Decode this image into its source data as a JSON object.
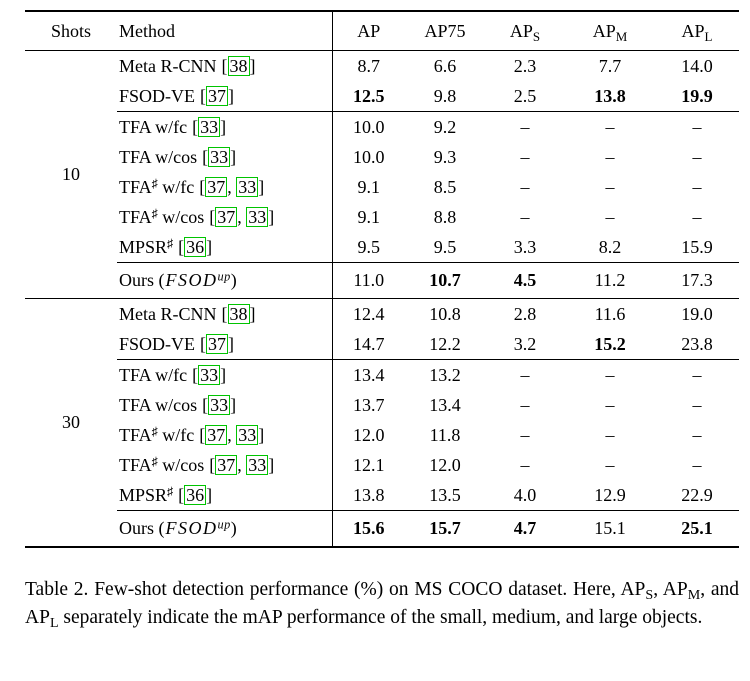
{
  "colors": {
    "cite_box_green": "#00c400"
  },
  "punct": {
    "open": "[",
    "close": "]",
    "sep": ", "
  },
  "header": {
    "shots": "Shots",
    "method": "Method",
    "ap": "AP",
    "ap75": "AP75",
    "ap_base": "AP",
    "sub_s": "S",
    "sub_m": "M",
    "sub_l": "L"
  },
  "groups": {
    "g10": {
      "shots": "10",
      "rows": {
        "meta": {
          "pre": "Meta R-CNN",
          "cite": "38",
          "v1": "8.7",
          "v2": "6.6",
          "v3": "2.3",
          "v4": "7.7",
          "v5": "14.0"
        },
        "fsod": {
          "pre": "FSOD-VE",
          "cite": "37",
          "v1": "12.5",
          "v2": "9.8",
          "v3": "2.5",
          "v4": "13.8",
          "v5": "19.9"
        },
        "tfa_fc": {
          "pre": "TFA w/fc",
          "cite": "33",
          "v1": "10.0",
          "v2": "9.2",
          "v3": "–",
          "v4": "–",
          "v5": "–"
        },
        "tfa_cos": {
          "pre": "TFA w/cos",
          "cite": "33",
          "v1": "10.0",
          "v2": "9.3",
          "v3": "–",
          "v4": "–",
          "v5": "–"
        },
        "tfas_fc": {
          "pre": "TFA",
          "sup": "♯",
          "post": " w/fc",
          "cite": "37",
          "cite2": "33",
          "v1": "9.1",
          "v2": "8.5",
          "v3": "–",
          "v4": "–",
          "v5": "–"
        },
        "tfas_cos": {
          "pre": "TFA",
          "sup": "♯",
          "post": " w/cos",
          "cite": "37",
          "cite2": "33",
          "v1": "9.1",
          "v2": "8.8",
          "v3": "–",
          "v4": "–",
          "v5": "–"
        },
        "mpsr": {
          "pre": "MPSR",
          "sup": "♯",
          "cite": "36",
          "v1": "9.5",
          "v2": "9.5",
          "v3": "3.3",
          "v4": "8.2",
          "v5": "15.9"
        },
        "ours": {
          "pre": "Ours (",
          "math": "FSOD",
          "msup": "up",
          "post": ")",
          "v1": "11.0",
          "v2": "10.7",
          "v3": "4.5",
          "v4": "11.2",
          "v5": "17.3"
        }
      }
    },
    "g30": {
      "shots": "30",
      "rows": {
        "meta": {
          "pre": "Meta R-CNN",
          "cite": "38",
          "v1": "12.4",
          "v2": "10.8",
          "v3": "2.8",
          "v4": "11.6",
          "v5": "19.0"
        },
        "fsod": {
          "pre": "FSOD-VE",
          "cite": "37",
          "v1": "14.7",
          "v2": "12.2",
          "v3": "3.2",
          "v4": "15.2",
          "v5": "23.8"
        },
        "tfa_fc": {
          "pre": "TFA w/fc",
          "cite": "33",
          "v1": "13.4",
          "v2": "13.2",
          "v3": "–",
          "v4": "–",
          "v5": "–"
        },
        "tfa_cos": {
          "pre": "TFA w/cos",
          "cite": "33",
          "v1": "13.7",
          "v2": "13.4",
          "v3": "–",
          "v4": "–",
          "v5": "–"
        },
        "tfas_fc": {
          "pre": "TFA",
          "sup": "♯",
          "post": " w/fc",
          "cite": "37",
          "cite2": "33",
          "v1": "12.0",
          "v2": "11.8",
          "v3": "–",
          "v4": "–",
          "v5": "–"
        },
        "tfas_cos": {
          "pre": "TFA",
          "sup": "♯",
          "post": " w/cos",
          "cite": "37",
          "cite2": "33",
          "v1": "12.1",
          "v2": "12.0",
          "v3": "–",
          "v4": "–",
          "v5": "–"
        },
        "mpsr": {
          "pre": "MPSR",
          "sup": "♯",
          "cite": "36",
          "v1": "13.8",
          "v2": "13.5",
          "v3": "4.0",
          "v4": "12.9",
          "v5": "22.9"
        },
        "ours": {
          "pre": "Ours (",
          "math": "FSOD",
          "msup": "up",
          "post": ")",
          "v1": "15.6",
          "v2": "15.7",
          "v3": "4.7",
          "v4": "15.1",
          "v5": "25.1"
        }
      }
    }
  },
  "caption": {
    "p1": "Table 2. Few-shot detection performance (%) on MS COCO dataset. Here, AP",
    "s1": "S",
    "p2": ", AP",
    "s2": "M",
    "p3": ", and AP",
    "s3": "L",
    "p4": " separately indicate the mAP performance of the small, medium, and large objects."
  }
}
